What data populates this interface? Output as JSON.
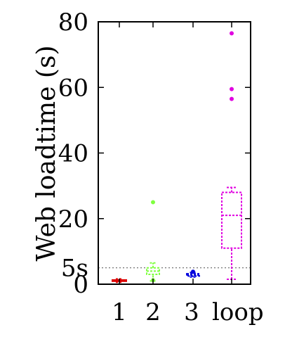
{
  "chart_data": {
    "type": "box",
    "ylabel": "Web loadtime (s)",
    "ylim": [
      0,
      80
    ],
    "yticks": [
      0,
      20,
      40,
      60,
      80
    ],
    "yticklabels": [
      "0",
      "20",
      "40",
      "60",
      "80"
    ],
    "reference_line": {
      "value": 5,
      "label": "5s",
      "style": "dotted"
    },
    "categories": [
      "1",
      "2",
      "3",
      "loop"
    ],
    "boxes": [
      {
        "category": "1",
        "color": "#dd0000",
        "whisker_low": 0.6,
        "q1": 0.9,
        "median": 1.1,
        "q3": 1.3,
        "whisker_high": 1.6,
        "outliers": []
      },
      {
        "category": "2",
        "color": "#7fff3f",
        "whisker_low": 1.0,
        "q1": 3.0,
        "median": 4.0,
        "q3": 5.0,
        "whisker_high": 6.5,
        "outliers": [
          25.0,
          1.2
        ]
      },
      {
        "category": "3",
        "color": "#0000dd",
        "whisker_low": 2.2,
        "q1": 2.5,
        "median": 2.8,
        "q3": 3.2,
        "whisker_high": 3.6,
        "outliers": [
          3.8
        ]
      },
      {
        "category": "loop",
        "color": "#e000e0",
        "whisker_low": 1.5,
        "q1": 11.0,
        "median": 21.0,
        "q3": 28.0,
        "whisker_high": 29.5,
        "outliers": [
          76.5,
          59.5,
          56.5
        ]
      }
    ]
  }
}
